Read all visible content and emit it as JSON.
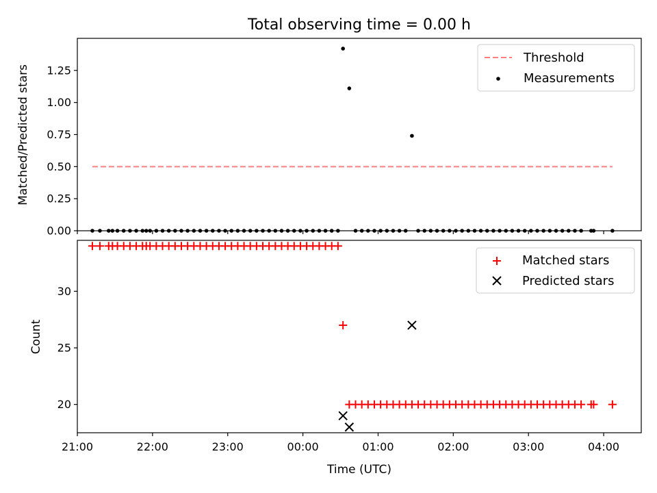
{
  "chart_data": [
    {
      "type": "scatter",
      "title": "Total observing time = 0.00 h",
      "xlabel": "",
      "ylabel": "Matched/Predicted stars",
      "x_unit": "Time (UTC)",
      "xlim": [
        "21:00",
        "04:30"
      ],
      "ylim": [
        0,
        1.5
      ],
      "yticks": [
        "0.00",
        "0.25",
        "0.50",
        "0.75",
        "1.00",
        "1.25"
      ],
      "legend_position": "upper right",
      "legend": [
        "Threshold",
        "Measurements"
      ],
      "series": [
        {
          "name": "Threshold",
          "kind": "dashed-line",
          "color": "#ff7f7f",
          "points": [
            {
              "x": "21:12",
              "y": 0.5
            },
            {
              "x": "04:07",
              "y": 0.5
            }
          ]
        },
        {
          "name": "Measurements",
          "kind": "dot",
          "color": "#000000",
          "values": [
            {
              "x": "21:12",
              "y": 0
            },
            {
              "x": "21:18",
              "y": 0
            },
            {
              "x": "21:25",
              "y": 0
            },
            {
              "x": "21:28",
              "y": 0
            },
            {
              "x": "21:32",
              "y": 0
            },
            {
              "x": "21:37",
              "y": 0
            },
            {
              "x": "21:42",
              "y": 0
            },
            {
              "x": "21:47",
              "y": 0
            },
            {
              "x": "21:52",
              "y": 0
            },
            {
              "x": "21:55",
              "y": 0
            },
            {
              "x": "21:58",
              "y": 0
            },
            {
              "x": "22:03",
              "y": 0
            },
            {
              "x": "22:08",
              "y": 0
            },
            {
              "x": "22:13",
              "y": 0
            },
            {
              "x": "22:18",
              "y": 0
            },
            {
              "x": "22:23",
              "y": 0
            },
            {
              "x": "22:28",
              "y": 0
            },
            {
              "x": "22:33",
              "y": 0
            },
            {
              "x": "22:38",
              "y": 0
            },
            {
              "x": "22:43",
              "y": 0
            },
            {
              "x": "22:48",
              "y": 0
            },
            {
              "x": "22:53",
              "y": 0
            },
            {
              "x": "22:58",
              "y": 0
            },
            {
              "x": "23:03",
              "y": 0
            },
            {
              "x": "23:08",
              "y": 0
            },
            {
              "x": "23:13",
              "y": 0
            },
            {
              "x": "23:18",
              "y": 0
            },
            {
              "x": "23:23",
              "y": 0
            },
            {
              "x": "23:28",
              "y": 0
            },
            {
              "x": "23:33",
              "y": 0
            },
            {
              "x": "23:38",
              "y": 0
            },
            {
              "x": "23:43",
              "y": 0
            },
            {
              "x": "23:48",
              "y": 0
            },
            {
              "x": "23:53",
              "y": 0
            },
            {
              "x": "23:58",
              "y": 0
            },
            {
              "x": "00:03",
              "y": 0
            },
            {
              "x": "00:08",
              "y": 0
            },
            {
              "x": "00:13",
              "y": 0
            },
            {
              "x": "00:18",
              "y": 0
            },
            {
              "x": "00:23",
              "y": 0
            },
            {
              "x": "00:28",
              "y": 0
            },
            {
              "x": "00:32",
              "y": 1.42
            },
            {
              "x": "00:37",
              "y": 1.11
            },
            {
              "x": "00:42",
              "y": 0
            },
            {
              "x": "00:47",
              "y": 0
            },
            {
              "x": "00:52",
              "y": 0
            },
            {
              "x": "00:57",
              "y": 0
            },
            {
              "x": "01:02",
              "y": 0
            },
            {
              "x": "01:07",
              "y": 0
            },
            {
              "x": "01:12",
              "y": 0
            },
            {
              "x": "01:17",
              "y": 0
            },
            {
              "x": "01:22",
              "y": 0
            },
            {
              "x": "01:27",
              "y": 0.74
            },
            {
              "x": "01:32",
              "y": 0
            },
            {
              "x": "01:37",
              "y": 0
            },
            {
              "x": "01:42",
              "y": 0
            },
            {
              "x": "01:47",
              "y": 0
            },
            {
              "x": "01:52",
              "y": 0
            },
            {
              "x": "01:57",
              "y": 0
            },
            {
              "x": "02:02",
              "y": 0
            },
            {
              "x": "02:07",
              "y": 0
            },
            {
              "x": "02:12",
              "y": 0
            },
            {
              "x": "02:17",
              "y": 0
            },
            {
              "x": "02:22",
              "y": 0
            },
            {
              "x": "02:27",
              "y": 0
            },
            {
              "x": "02:32",
              "y": 0
            },
            {
              "x": "02:37",
              "y": 0
            },
            {
              "x": "02:42",
              "y": 0
            },
            {
              "x": "02:47",
              "y": 0
            },
            {
              "x": "02:52",
              "y": 0
            },
            {
              "x": "02:57",
              "y": 0
            },
            {
              "x": "03:02",
              "y": 0
            },
            {
              "x": "03:07",
              "y": 0
            },
            {
              "x": "03:12",
              "y": 0
            },
            {
              "x": "03:17",
              "y": 0
            },
            {
              "x": "03:22",
              "y": 0
            },
            {
              "x": "03:27",
              "y": 0
            },
            {
              "x": "03:32",
              "y": 0
            },
            {
              "x": "03:37",
              "y": 0
            },
            {
              "x": "03:42",
              "y": 0
            },
            {
              "x": "03:50",
              "y": 0
            },
            {
              "x": "03:52",
              "y": 0
            },
            {
              "x": "04:07",
              "y": 0
            }
          ]
        }
      ]
    },
    {
      "type": "scatter",
      "title": "",
      "xlabel": "Time (UTC)",
      "ylabel": "Count",
      "xlim": [
        "21:00",
        "04:30"
      ],
      "ylim": [
        17.5,
        34.5
      ],
      "xticks": [
        "21:00",
        "22:00",
        "23:00",
        "00:00",
        "01:00",
        "02:00",
        "03:00",
        "04:00"
      ],
      "yticks": [
        "20",
        "25",
        "30"
      ],
      "legend_position": "upper right",
      "legend": [
        "Matched stars",
        "Predicted stars"
      ],
      "series": [
        {
          "name": "Matched stars",
          "marker": "plus",
          "color": "#ff0000",
          "values": [
            {
              "x": "21:12",
              "y": 34
            },
            {
              "x": "21:18",
              "y": 34
            },
            {
              "x": "21:25",
              "y": 34
            },
            {
              "x": "21:28",
              "y": 34
            },
            {
              "x": "21:32",
              "y": 34
            },
            {
              "x": "21:37",
              "y": 34
            },
            {
              "x": "21:42",
              "y": 34
            },
            {
              "x": "21:47",
              "y": 34
            },
            {
              "x": "21:52",
              "y": 34
            },
            {
              "x": "21:55",
              "y": 34
            },
            {
              "x": "21:58",
              "y": 34
            },
            {
              "x": "22:03",
              "y": 34
            },
            {
              "x": "22:08",
              "y": 34
            },
            {
              "x": "22:13",
              "y": 34
            },
            {
              "x": "22:18",
              "y": 34
            },
            {
              "x": "22:23",
              "y": 34
            },
            {
              "x": "22:28",
              "y": 34
            },
            {
              "x": "22:33",
              "y": 34
            },
            {
              "x": "22:38",
              "y": 34
            },
            {
              "x": "22:43",
              "y": 34
            },
            {
              "x": "22:48",
              "y": 34
            },
            {
              "x": "22:53",
              "y": 34
            },
            {
              "x": "22:58",
              "y": 34
            },
            {
              "x": "23:03",
              "y": 34
            },
            {
              "x": "23:08",
              "y": 34
            },
            {
              "x": "23:13",
              "y": 34
            },
            {
              "x": "23:18",
              "y": 34
            },
            {
              "x": "23:23",
              "y": 34
            },
            {
              "x": "23:28",
              "y": 34
            },
            {
              "x": "23:33",
              "y": 34
            },
            {
              "x": "23:38",
              "y": 34
            },
            {
              "x": "23:43",
              "y": 34
            },
            {
              "x": "23:48",
              "y": 34
            },
            {
              "x": "23:53",
              "y": 34
            },
            {
              "x": "23:58",
              "y": 34
            },
            {
              "x": "00:03",
              "y": 34
            },
            {
              "x": "00:08",
              "y": 34
            },
            {
              "x": "00:13",
              "y": 34
            },
            {
              "x": "00:18",
              "y": 34
            },
            {
              "x": "00:23",
              "y": 34
            },
            {
              "x": "00:28",
              "y": 34
            },
            {
              "x": "00:32",
              "y": 27
            },
            {
              "x": "00:37",
              "y": 20
            },
            {
              "x": "00:42",
              "y": 20
            },
            {
              "x": "00:47",
              "y": 20
            },
            {
              "x": "00:52",
              "y": 20
            },
            {
              "x": "00:57",
              "y": 20
            },
            {
              "x": "01:02",
              "y": 20
            },
            {
              "x": "01:07",
              "y": 20
            },
            {
              "x": "01:12",
              "y": 20
            },
            {
              "x": "01:17",
              "y": 20
            },
            {
              "x": "01:22",
              "y": 20
            },
            {
              "x": "01:27",
              "y": 20
            },
            {
              "x": "01:32",
              "y": 20
            },
            {
              "x": "01:37",
              "y": 20
            },
            {
              "x": "01:42",
              "y": 20
            },
            {
              "x": "01:47",
              "y": 20
            },
            {
              "x": "01:52",
              "y": 20
            },
            {
              "x": "01:57",
              "y": 20
            },
            {
              "x": "02:02",
              "y": 20
            },
            {
              "x": "02:07",
              "y": 20
            },
            {
              "x": "02:12",
              "y": 20
            },
            {
              "x": "02:17",
              "y": 20
            },
            {
              "x": "02:22",
              "y": 20
            },
            {
              "x": "02:27",
              "y": 20
            },
            {
              "x": "02:32",
              "y": 20
            },
            {
              "x": "02:37",
              "y": 20
            },
            {
              "x": "02:42",
              "y": 20
            },
            {
              "x": "02:47",
              "y": 20
            },
            {
              "x": "02:52",
              "y": 20
            },
            {
              "x": "02:57",
              "y": 20
            },
            {
              "x": "03:02",
              "y": 20
            },
            {
              "x": "03:07",
              "y": 20
            },
            {
              "x": "03:12",
              "y": 20
            },
            {
              "x": "03:17",
              "y": 20
            },
            {
              "x": "03:22",
              "y": 20
            },
            {
              "x": "03:27",
              "y": 20
            },
            {
              "x": "03:32",
              "y": 20
            },
            {
              "x": "03:37",
              "y": 20
            },
            {
              "x": "03:42",
              "y": 20
            },
            {
              "x": "03:50",
              "y": 20
            },
            {
              "x": "03:52",
              "y": 20
            },
            {
              "x": "04:07",
              "y": 20
            }
          ]
        },
        {
          "name": "Predicted stars",
          "marker": "x",
          "color": "#000000",
          "values": [
            {
              "x": "00:32",
              "y": 19
            },
            {
              "x": "00:37",
              "y": 18
            },
            {
              "x": "01:27",
              "y": 27
            }
          ]
        }
      ]
    }
  ]
}
